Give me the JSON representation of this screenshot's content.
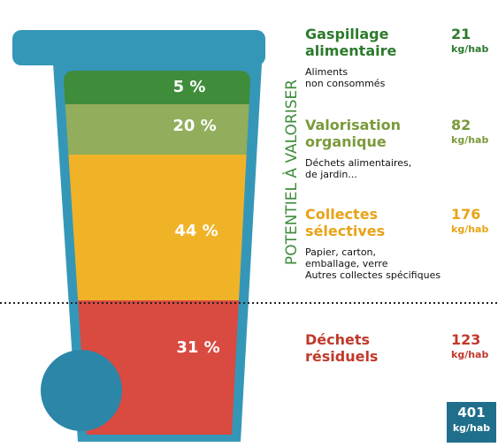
{
  "axis_label": "POTENTIEL À VALORISER",
  "segments": [
    {
      "percent": "5 %",
      "name_lines": [
        "Gaspillage",
        "alimentaire"
      ],
      "value": "21",
      "unit": "kg/hab",
      "description_lines": [
        "Aliments",
        "non consommés"
      ]
    },
    {
      "percent": "20 %",
      "name_lines": [
        "Valorisation",
        "organique"
      ],
      "value": "82",
      "unit": "kg/hab",
      "description_lines": [
        "Déchets alimentaires,",
        "de jardin..."
      ]
    },
    {
      "percent": "44 %",
      "name_lines": [
        "Collectes",
        "sélectives"
      ],
      "value": "176",
      "unit": "kg/hab",
      "description_lines": [
        "Papier, carton,",
        "emballage, verre",
        "Autres collectes spécifiques"
      ]
    },
    {
      "percent": "31 %",
      "name_lines": [
        "Déchets",
        "résiduels"
      ],
      "value": "123",
      "unit": "kg/hab",
      "description_lines": []
    }
  ],
  "total": {
    "value": "401",
    "unit": "kg/hab"
  }
}
